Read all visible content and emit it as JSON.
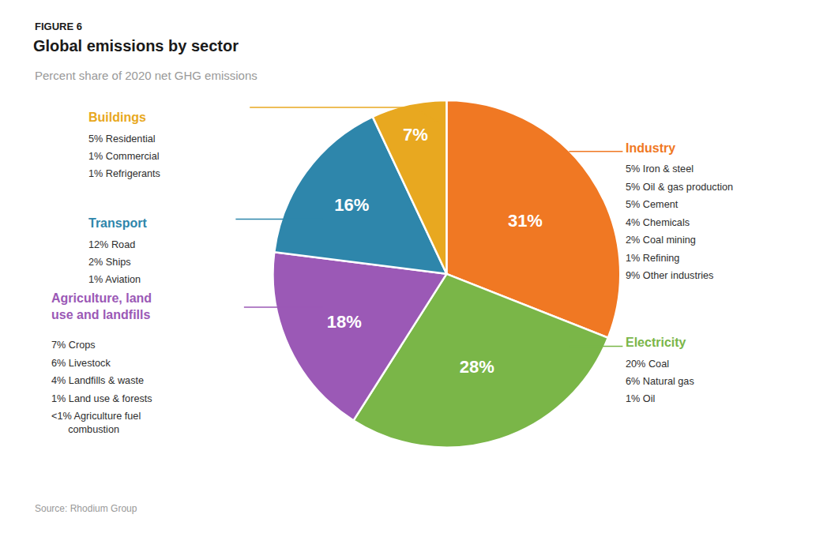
{
  "chart_data": {
    "type": "pie",
    "figure_label": "FIGURE 6",
    "title": "Global emissions by sector",
    "subtitle": "Percent share of 2020 net GHG emissions",
    "source": "Source: Rhodium Group",
    "categories": [
      "Industry",
      "Electricity",
      "Agriculture, land\nuse and landfills",
      "Transport",
      "Buildings"
    ],
    "values": [
      31,
      28,
      18,
      16,
      7
    ],
    "value_labels": [
      "31%",
      "28%",
      "18%",
      "16%",
      "7%"
    ],
    "data_labels": true,
    "colors": [
      "#F07823",
      "#7AB648",
      "#9B59B6",
      "#2E86AB",
      "#E8A820"
    ],
    "details": [
      [
        "5% Iron & steel",
        "5% Oil & gas production",
        "5% Cement",
        "4% Chemicals",
        "2% Coal mining",
        "1% Refining",
        "9% Other industries"
      ],
      [
        "20% Coal",
        "6% Natural gas",
        "1% Oil"
      ],
      [
        "7% Crops",
        "6% Livestock",
        "4% Landfills & waste",
        "1% Land use & forests",
        "<1% Agriculture fuel\n      combustion"
      ],
      [
        "12% Road",
        "2% Ships",
        "1% Aviation"
      ],
      [
        "5% Residential",
        "1% Commercial",
        "1% Refrigerants"
      ]
    ],
    "legend": false
  }
}
